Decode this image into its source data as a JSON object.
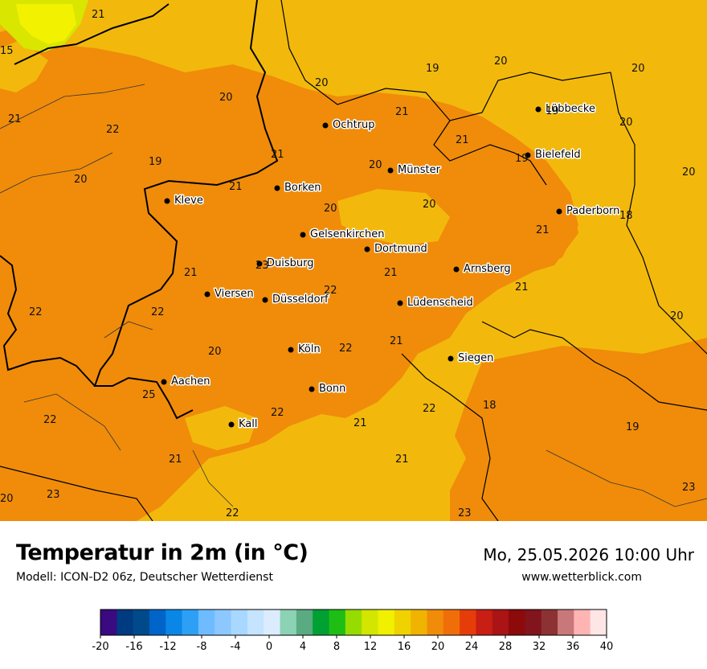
{
  "map": {
    "cities": [
      {
        "name": "Lübbecke"
      },
      {
        "name": "Ochtrup"
      },
      {
        "name": "Bielefeld"
      },
      {
        "name": "Münster"
      },
      {
        "name": "Borken"
      },
      {
        "name": "Kleve"
      },
      {
        "name": "Paderborn"
      },
      {
        "name": "Gelsenkirchen"
      },
      {
        "name": "Dortmund"
      },
      {
        "name": "Duisburg"
      },
      {
        "name": "Arnsberg"
      },
      {
        "name": "Viersen"
      },
      {
        "name": "Düsseldorf"
      },
      {
        "name": "Lüdenscheid"
      },
      {
        "name": "Köln"
      },
      {
        "name": "Siegen"
      },
      {
        "name": "Aachen"
      },
      {
        "name": "Bonn"
      },
      {
        "name": "Kall"
      }
    ],
    "values": [
      "21",
      "15",
      "19",
      "20",
      "20",
      "20",
      "20",
      "21",
      "19",
      "21",
      "22",
      "21",
      "20",
      "20",
      "19",
      "19",
      "20",
      "21",
      "20",
      "20",
      "18",
      "21",
      "23",
      "21",
      "21",
      "22",
      "22",
      "22",
      "22",
      "21",
      "20",
      "20",
      "21",
      "21",
      "20",
      "25",
      "22",
      "22",
      "21",
      "22",
      "18",
      "19",
      "21",
      "21",
      "20",
      "23",
      "23",
      "22",
      "23"
    ],
    "colors": {
      "c18": "#f2b90c",
      "c20": "#f08c0a",
      "c14": "#d9e600",
      "c12": "#f2f200",
      "c22": "#f08c0a"
    }
  },
  "footer": {
    "title": "Temperatur in 2m (in °C)",
    "model": "Modell: ICON-D2 06z, Deutscher Wetterdienst",
    "datetime": "Mo, 25.05.2026 10:00 Uhr",
    "website": "www.wetterblick.com"
  },
  "scale": {
    "colors": [
      "#3a0a80",
      "#003a80",
      "#004a8c",
      "#0064c8",
      "#0a87e6",
      "#2da0f5",
      "#6ebcff",
      "#8cc8ff",
      "#a8d8ff",
      "#c4e4ff",
      "#dcecff",
      "#8cd2b4",
      "#5aaa82",
      "#00a032",
      "#1ebe14",
      "#96dc00",
      "#d2e600",
      "#f0f000",
      "#f0d200",
      "#f0b400",
      "#f08c0a",
      "#f06e0a",
      "#e63c0a",
      "#c81e14",
      "#aa1414",
      "#8c0a0a",
      "#82141e",
      "#8c3232",
      "#c87878",
      "#ffb4b4",
      "#ffe6e6"
    ],
    "ticks": [
      "-20",
      "-16",
      "-12",
      "-8",
      "-4",
      "0",
      "4",
      "8",
      "12",
      "16",
      "20",
      "24",
      "28",
      "32",
      "36",
      "40"
    ]
  }
}
